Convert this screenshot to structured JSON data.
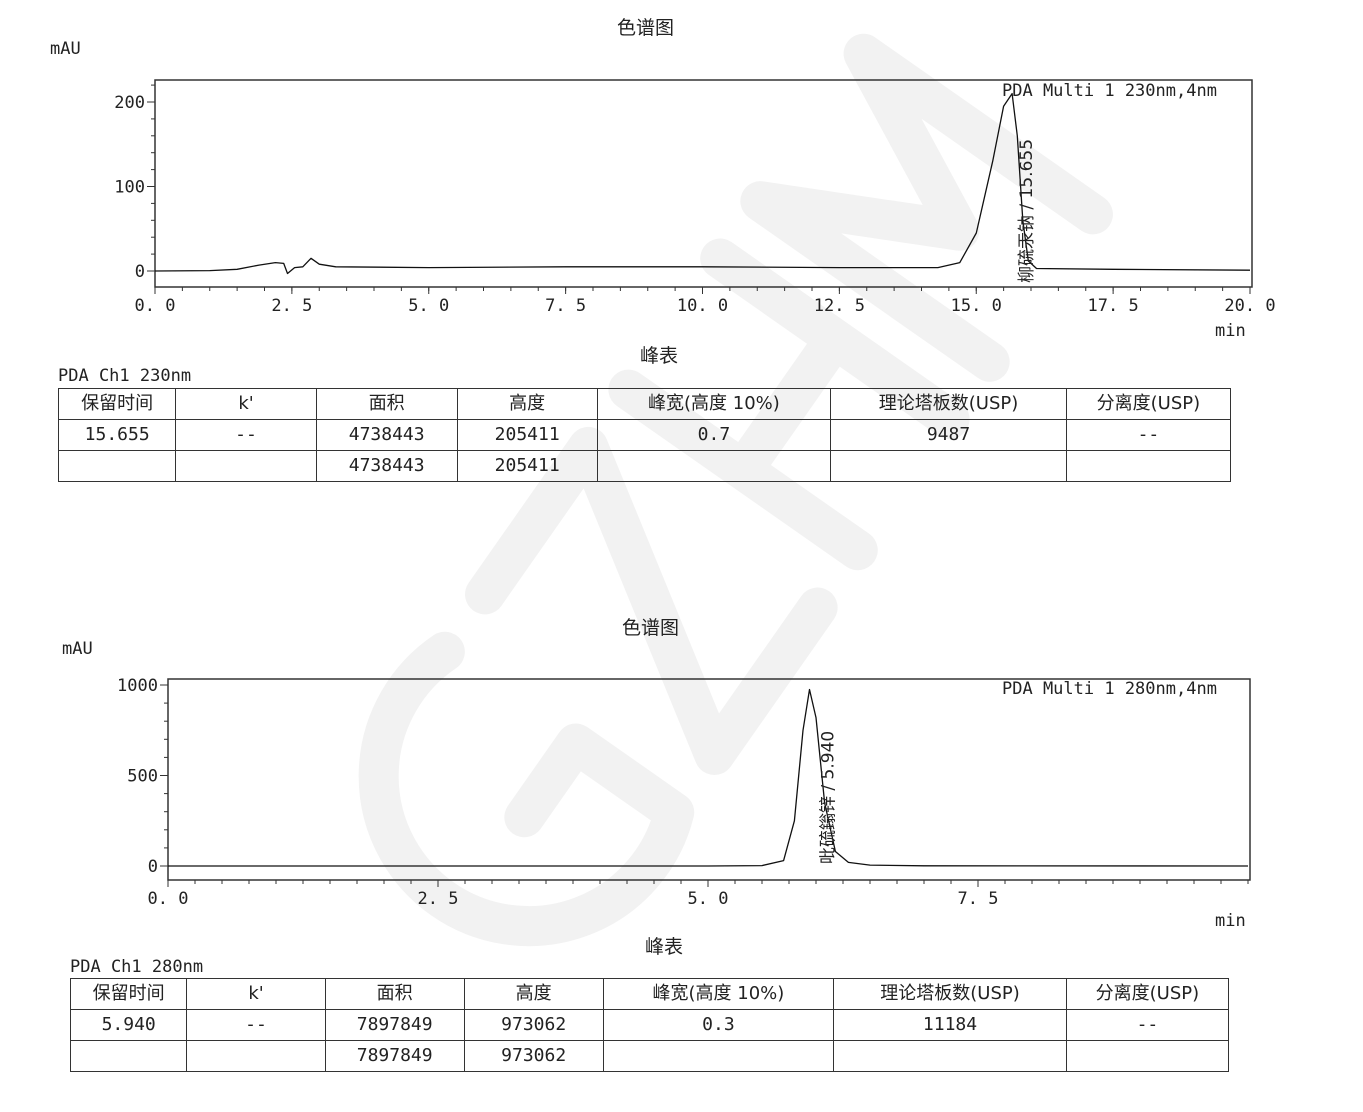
{
  "chart_data": [
    {
      "type": "line",
      "title": "色谱图",
      "ylabel": "mAU",
      "xlabel": "min",
      "legend": "PDA Multi 1 230nm,4nm",
      "xlim": [
        0,
        20
      ],
      "ylim": [
        -19,
        226
      ],
      "xticks": [
        "0.0",
        "2.5",
        "5.0",
        "7.5",
        "10.0",
        "12.5",
        "15.0",
        "17.5",
        "20.0"
      ],
      "yticks": [
        "0",
        "100",
        "200"
      ],
      "peak_label": "柳硫汞钠 / 15.655",
      "trace": [
        [
          0,
          0
        ],
        [
          1,
          0.5
        ],
        [
          1.5,
          2
        ],
        [
          1.9,
          7
        ],
        [
          2.2,
          10
        ],
        [
          2.35,
          9
        ],
        [
          2.42,
          -3
        ],
        [
          2.55,
          4
        ],
        [
          2.7,
          5
        ],
        [
          2.85,
          15
        ],
        [
          3.0,
          8
        ],
        [
          3.3,
          5
        ],
        [
          5,
          4
        ],
        [
          7.5,
          5
        ],
        [
          10,
          5
        ],
        [
          12.5,
          4
        ],
        [
          14.3,
          4
        ],
        [
          14.7,
          10
        ],
        [
          15.0,
          45
        ],
        [
          15.3,
          130
        ],
        [
          15.5,
          195
        ],
        [
          15.655,
          210
        ],
        [
          15.75,
          160
        ],
        [
          15.85,
          60
        ],
        [
          15.95,
          12
        ],
        [
          16.1,
          3
        ],
        [
          17.5,
          2
        ],
        [
          20,
          1
        ]
      ]
    },
    {
      "type": "line",
      "title": "色谱图",
      "ylabel": "mAU",
      "xlabel": "min",
      "legend": "PDA Multi 1 280nm,4nm",
      "xlim": [
        0,
        10
      ],
      "ylim": [
        -70,
        1040
      ],
      "xticks": [
        "0.0",
        "2.5",
        "5.0",
        "7.5"
      ],
      "yticks": [
        "0",
        "500",
        "1000"
      ],
      "peak_label": "吡硫鎓锌 / 5.940",
      "trace": [
        [
          0,
          0
        ],
        [
          5,
          0
        ],
        [
          5.5,
          2
        ],
        [
          5.7,
          30
        ],
        [
          5.8,
          250
        ],
        [
          5.88,
          750
        ],
        [
          5.94,
          975
        ],
        [
          6.0,
          820
        ],
        [
          6.08,
          350
        ],
        [
          6.18,
          80
        ],
        [
          6.3,
          20
        ],
        [
          6.5,
          5
        ],
        [
          7,
          1
        ],
        [
          10,
          0
        ]
      ]
    }
  ],
  "tables": [
    {
      "title": "峰表",
      "channel": "PDA Ch1 230nm",
      "headers": [
        "保留时间",
        "k'",
        "面积",
        "高度",
        "峰宽(高度 10%)",
        "理论塔板数(USP)",
        "分离度(USP)"
      ],
      "rows": [
        [
          "15.655",
          "--",
          "4738443",
          "205411",
          "0.7",
          "9487",
          "--"
        ],
        [
          "",
          "",
          "4738443",
          "205411",
          "",
          "",
          ""
        ]
      ]
    },
    {
      "title": "峰表",
      "channel": "PDA Ch1 280nm",
      "headers": [
        "保留时间",
        "k'",
        "面积",
        "高度",
        "峰宽(高度 10%)",
        "理论塔板数(USP)",
        "分离度(USP)"
      ],
      "rows": [
        [
          "5.940",
          "--",
          "7897849",
          "973062",
          "0.3",
          "11184",
          "--"
        ],
        [
          "",
          "",
          "7897849",
          "973062",
          "",
          "",
          ""
        ]
      ]
    }
  ],
  "watermark": "GZHM"
}
